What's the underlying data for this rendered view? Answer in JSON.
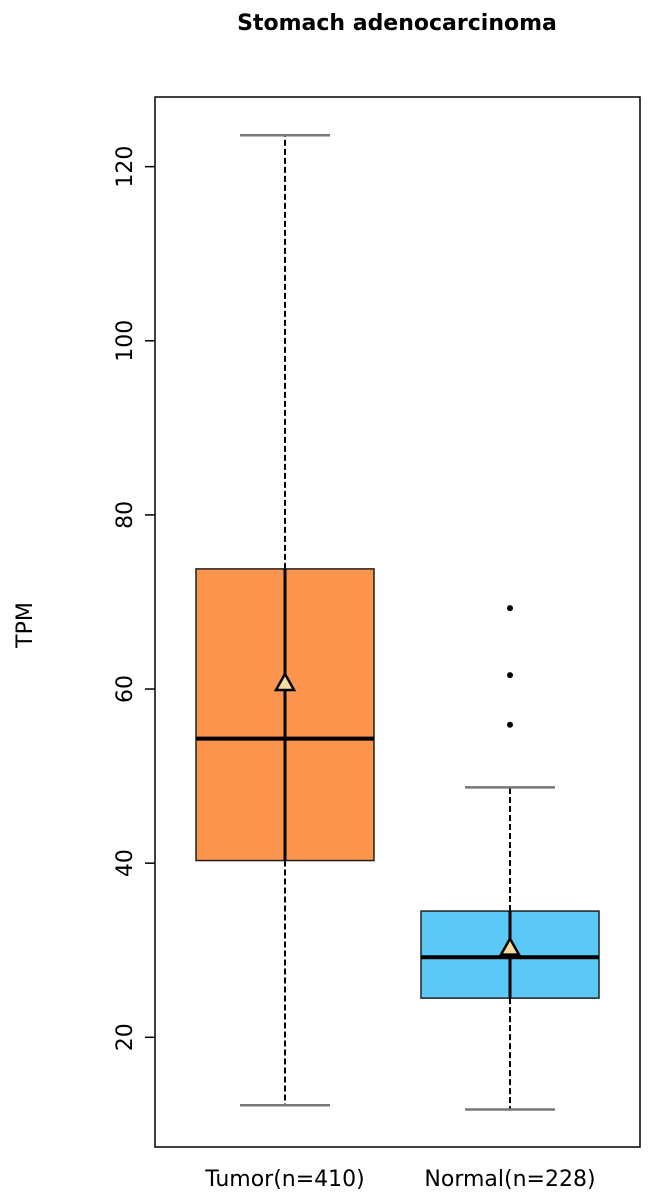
{
  "chart_data": {
    "type": "box",
    "title": "Stomach adenocarcinoma",
    "y_label": "TPM",
    "categories": [
      "Tumor(n=410)",
      "Normal(n=228)"
    ],
    "boxes": [
      {
        "whisker_low": 12.2,
        "q1": 40.3,
        "median": 54.3,
        "q3": 73.8,
        "whisker_high": 123.6,
        "mean": 60.7,
        "outliers": [],
        "color": "#fb944c"
      },
      {
        "whisker_low": 11.7,
        "q1": 24.5,
        "median": 29.2,
        "q3": 34.5,
        "whisker_high": 48.7,
        "mean": 30.3,
        "outliers": [
          55.9,
          61.6,
          69.3
        ],
        "color": "#5cc8f5"
      }
    ],
    "ylim": [
      7.4,
      128
    ],
    "yticks": [
      20,
      40,
      60,
      80,
      100,
      120
    ],
    "grid": false
  }
}
